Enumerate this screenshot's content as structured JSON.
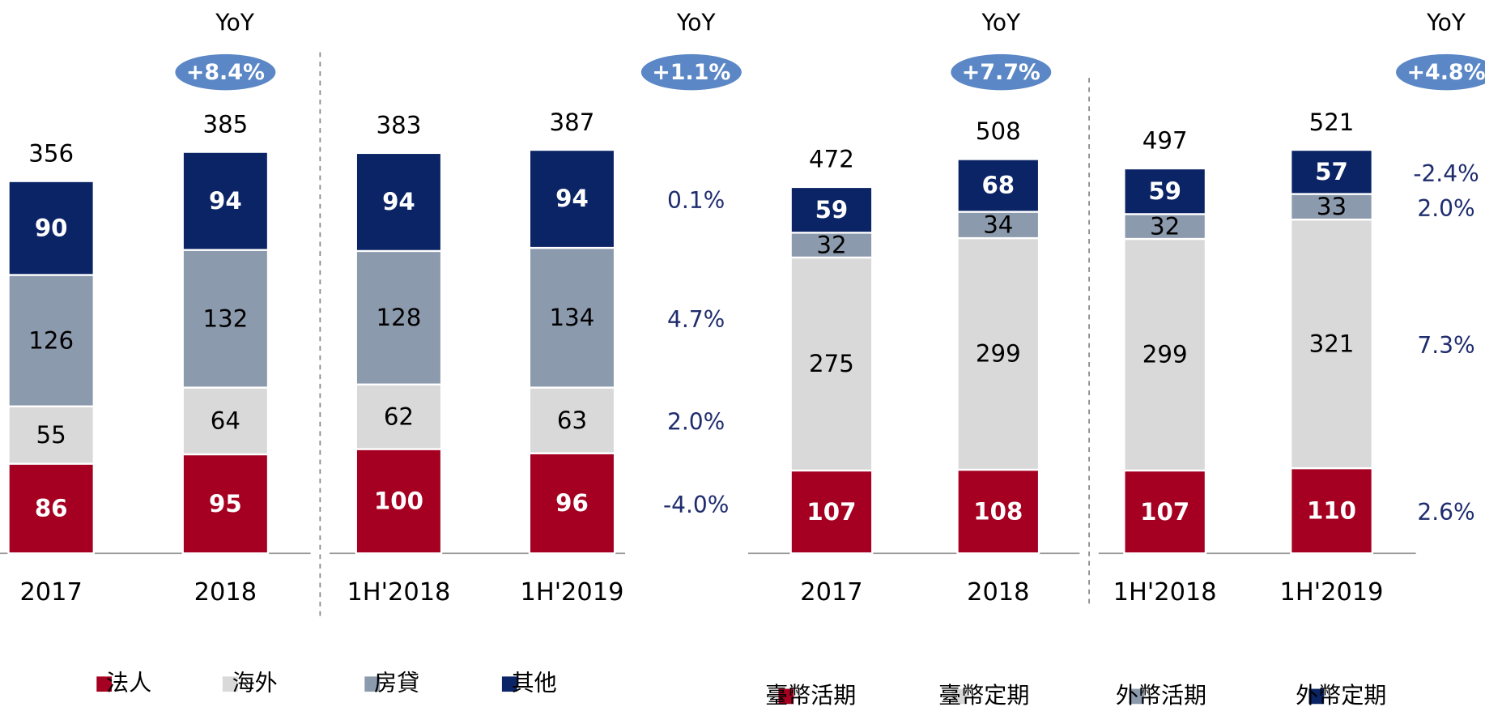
{
  "chart_data": [
    {
      "type": "bar",
      "stacked": true,
      "categories": [
        "2017",
        "2018",
        "1H'2018",
        "1H'2019"
      ],
      "series": [
        {
          "name": "法人",
          "color": "#a50021",
          "values": [
            86,
            95,
            100,
            96
          ],
          "yoy": "-4.0%"
        },
        {
          "name": "海外",
          "color": "#d9d9d9",
          "values": [
            55,
            64,
            62,
            63
          ],
          "yoy": "2.0%"
        },
        {
          "name": "房貸",
          "color": "#8c9aad",
          "values": [
            126,
            132,
            128,
            134
          ],
          "yoy": "4.7%"
        },
        {
          "name": "其他",
          "color": "#0b2466",
          "values": [
            90,
            94,
            94,
            94
          ],
          "yoy": "0.1%"
        }
      ],
      "totals": [
        356,
        385,
        383,
        387
      ],
      "yoy_title": "YoY",
      "period_growth": [
        "+8.4%",
        "+1.1%"
      ]
    },
    {
      "type": "bar",
      "stacked": true,
      "categories": [
        "2017",
        "2018",
        "1H'2018",
        "1H'2019"
      ],
      "series": [
        {
          "name": "臺幣活期",
          "color": "#a50021",
          "values": [
            107,
            108,
            107,
            110
          ],
          "yoy": "2.6%"
        },
        {
          "name": "臺幣定期",
          "color": "#d9d9d9",
          "values": [
            275,
            299,
            299,
            321
          ],
          "yoy": "7.3%"
        },
        {
          "name": "外幣活期",
          "color": "#8c9aad",
          "values": [
            32,
            34,
            32,
            33
          ],
          "yoy": "2.0%"
        },
        {
          "name": "外幣定期",
          "color": "#0b2466",
          "values": [
            59,
            68,
            59,
            57
          ],
          "yoy": "-2.4%"
        }
      ],
      "totals": [
        472,
        508,
        497,
        521
      ],
      "yoy_title": "YoY",
      "period_growth": [
        "+7.7%",
        "+4.8%"
      ]
    }
  ]
}
